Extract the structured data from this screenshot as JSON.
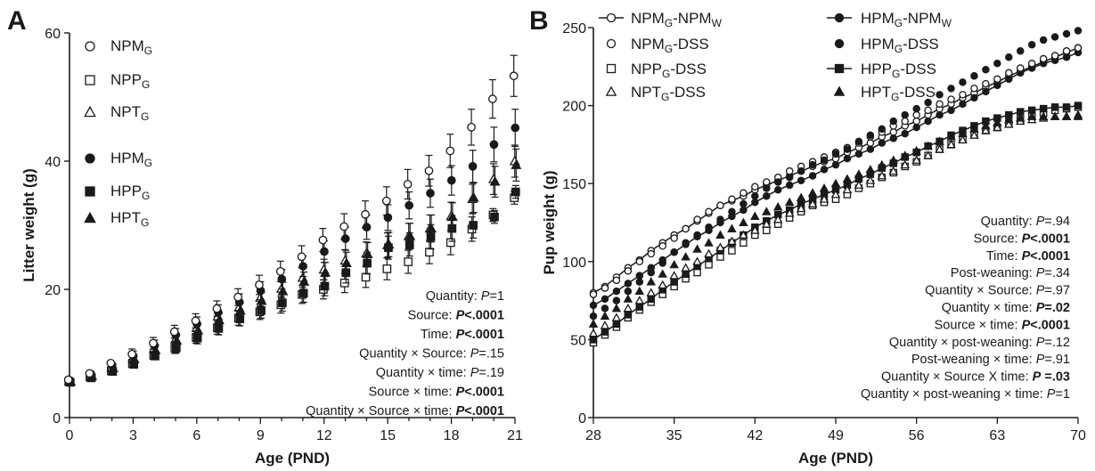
{
  "chart_data": [
    {
      "type": "scatter",
      "panel_label": "A",
      "xlabel": "Age (PND)",
      "ylabel": "Litter weight (g)",
      "xlim": [
        0,
        21
      ],
      "ylim": [
        0,
        60
      ],
      "x_ticks": [
        "0",
        "3",
        "6",
        "9",
        "12",
        "15",
        "18",
        "21"
      ],
      "y_ticks": [
        "0",
        "20",
        "40",
        "60"
      ],
      "x": [
        0,
        1,
        2,
        3,
        4,
        5,
        6,
        7,
        8,
        9,
        10,
        11,
        12,
        13,
        14,
        15,
        16,
        17,
        18,
        19,
        20,
        21
      ],
      "series": [
        {
          "name": "NPM",
          "sub": "G",
          "marker": "circle-open",
          "values": [
            5.9,
            6.9,
            8.5,
            9.9,
            11.6,
            13.4,
            15.1,
            17.0,
            18.8,
            20.7,
            22.8,
            25.1,
            27.7,
            29.8,
            31.7,
            33.8,
            36.4,
            38.5,
            41.6,
            45.3,
            49.7,
            53.3
          ],
          "errors": [
            0.6,
            0.6,
            0.7,
            0.8,
            0.9,
            1.0,
            1.1,
            1.2,
            1.3,
            1.5,
            1.6,
            1.7,
            1.8,
            2.0,
            2.1,
            2.2,
            2.3,
            2.4,
            2.6,
            2.8,
            3.0,
            3.2
          ]
        },
        {
          "name": "NPP",
          "sub": "G",
          "marker": "square-open",
          "values": [
            5.6,
            6.3,
            7.3,
            8.4,
            9.7,
            10.8,
            12.5,
            14.0,
            15.5,
            16.5,
            17.6,
            19.2,
            20.0,
            21.0,
            21.9,
            23.2,
            24.3,
            25.8,
            27.3,
            29.4,
            31.6,
            34.3
          ],
          "errors": [
            0.4,
            0.4,
            0.5,
            0.6,
            0.7,
            0.8,
            0.9,
            1.0,
            1.1,
            1.2,
            1.3,
            1.4,
            1.5,
            1.5,
            1.6,
            1.7,
            1.8,
            1.8,
            1.9,
            1.9,
            1.0,
            1.0
          ]
        },
        {
          "name": "NPT",
          "sub": "G",
          "marker": "triangle-open",
          "values": [
            5.7,
            6.6,
            7.8,
            9.2,
            10.8,
            12.2,
            14.0,
            15.8,
            17.2,
            18.7,
            20.1,
            21.8,
            23.1,
            24.5,
            25.6,
            26.9,
            28.3,
            29.5,
            31.4,
            34.1,
            37.2,
            40.0
          ],
          "errors": [
            0.5,
            0.5,
            0.6,
            0.7,
            0.8,
            0.9,
            1.0,
            1.1,
            1.2,
            1.3,
            1.4,
            1.5,
            1.6,
            1.7,
            1.8,
            1.9,
            2.0,
            2.1,
            2.2,
            2.3,
            2.4,
            2.5
          ]
        },
        {
          "name": "HPM",
          "sub": "G",
          "marker": "circle-filled",
          "values": [
            5.8,
            6.8,
            8.2,
            9.6,
            11.2,
            12.9,
            14.6,
            16.4,
            18.0,
            19.8,
            21.6,
            23.6,
            25.9,
            27.9,
            29.7,
            31.2,
            33.1,
            35.0,
            37.0,
            39.2,
            42.6,
            45.2
          ],
          "errors": [
            0.6,
            0.6,
            0.7,
            0.8,
            0.9,
            1.0,
            1.1,
            1.2,
            1.3,
            1.4,
            1.5,
            1.6,
            1.7,
            1.8,
            1.9,
            2.0,
            2.1,
            2.2,
            2.3,
            2.5,
            2.7,
            2.9
          ]
        },
        {
          "name": "HPP",
          "sub": "G",
          "marker": "square-filled",
          "values": [
            5.5,
            6.2,
            7.2,
            8.3,
            9.6,
            10.9,
            12.4,
            13.9,
            15.4,
            16.7,
            17.9,
            19.4,
            20.5,
            22.6,
            24.1,
            26.5,
            27.0,
            28.2,
            29.5,
            30.0,
            31.3,
            35.2
          ],
          "errors": [
            0.4,
            0.4,
            0.5,
            0.6,
            0.7,
            0.8,
            0.9,
            1.0,
            1.1,
            1.2,
            1.3,
            1.4,
            1.5,
            1.6,
            1.7,
            1.8,
            1.8,
            1.9,
            2.0,
            2.0,
            1.0,
            1.0
          ]
        },
        {
          "name": "HPT",
          "sub": "G",
          "marker": "triangle-filled",
          "values": [
            5.6,
            6.5,
            7.7,
            9.1,
            10.5,
            12.0,
            13.6,
            15.2,
            16.7,
            18.2,
            19.7,
            21.2,
            22.6,
            24.1,
            25.5,
            27.0,
            28.3,
            29.5,
            31.3,
            34.3,
            36.8,
            39.4
          ],
          "errors": [
            0.5,
            0.5,
            0.6,
            0.7,
            0.8,
            0.9,
            1.0,
            1.1,
            1.2,
            1.3,
            1.4,
            1.5,
            1.6,
            1.7,
            1.8,
            1.9,
            2.0,
            2.1,
            2.2,
            2.3,
            2.4,
            2.5
          ]
        }
      ],
      "stats": [
        {
          "label": "Quantity:",
          "p_prefix": "P",
          "p_value": "=1",
          "bold": false
        },
        {
          "label": "Source:",
          "p_prefix": "P",
          "p_value": "<.0001",
          "bold": true
        },
        {
          "label": "Time:",
          "p_prefix": "P",
          "p_value": "<.0001",
          "bold": true
        },
        {
          "label": "Quantity × Source:",
          "p_prefix": "P",
          "p_value": "=.15",
          "bold": false
        },
        {
          "label": "Quantity × time:",
          "p_prefix": "P",
          "p_value": "=.19",
          "bold": false
        },
        {
          "label": "Source × time:",
          "p_prefix": "P",
          "p_value": "<.0001",
          "bold": true
        },
        {
          "label": "Quantity × Source × time:",
          "p_prefix": "P",
          "p_value": "<.0001",
          "bold": true
        }
      ]
    },
    {
      "type": "line",
      "panel_label": "B",
      "xlabel": "Age (PND)",
      "ylabel": "Pup weight (g)",
      "xlim": [
        28,
        70
      ],
      "ylim": [
        0,
        250
      ],
      "x_ticks": [
        "28",
        "35",
        "42",
        "49",
        "56",
        "63",
        "70"
      ],
      "y_ticks": [
        "0",
        "50",
        "100",
        "150",
        "200",
        "250"
      ],
      "x": [
        28,
        29,
        30,
        31,
        32,
        33,
        34,
        35,
        36,
        37,
        38,
        39,
        40,
        41,
        42,
        43,
        44,
        45,
        46,
        47,
        48,
        49,
        50,
        51,
        52,
        53,
        54,
        55,
        56,
        57,
        58,
        59,
        60,
        61,
        62,
        63,
        64,
        65,
        66,
        67,
        68,
        69,
        70
      ],
      "series": [
        {
          "name": "NPM",
          "sub1": "G",
          "name2": "-NPM",
          "sub2": "W",
          "marker": "line-circle-open",
          "values": [
            80,
            84,
            90,
            96,
            101,
            107,
            112,
            117,
            121,
            126,
            131,
            136,
            139,
            142,
            146,
            149,
            152,
            155,
            158,
            161,
            164,
            166,
            170,
            173,
            176,
            180,
            183,
            187,
            190,
            194,
            198,
            201,
            205,
            208,
            212,
            215,
            219,
            222,
            225,
            228,
            231,
            234,
            237
          ]
        },
        {
          "name": "NPM",
          "sub": "G",
          "name2": "-DSS",
          "marker": "circle-open",
          "values": [
            79,
            83,
            88,
            94,
            100,
            105,
            110,
            115,
            121,
            127,
            132,
            136,
            140,
            144,
            148,
            151,
            154,
            158,
            161,
            164,
            167,
            170,
            173,
            176,
            180,
            183,
            187,
            190,
            194,
            197,
            201,
            204,
            207,
            211,
            214,
            217,
            221,
            224,
            227,
            230,
            232,
            235,
            237
          ]
        },
        {
          "name": "NPP",
          "sub": "G",
          "name2": "-DSS",
          "marker": "square-open",
          "values": [
            48,
            53,
            58,
            64,
            69,
            74,
            79,
            84,
            89,
            93,
            98,
            103,
            107,
            112,
            117,
            120,
            124,
            128,
            132,
            136,
            138,
            140,
            143,
            147,
            150,
            154,
            157,
            161,
            164,
            168,
            172,
            175,
            179,
            182,
            184,
            186,
            189,
            191,
            193,
            195,
            197,
            198,
            199
          ]
        },
        {
          "name": "NPT",
          "sub": "G",
          "name2": "-DSS",
          "marker": "triangle-open",
          "values": [
            54,
            59,
            64,
            70,
            75,
            80,
            85,
            91,
            96,
            100,
            105,
            109,
            113,
            117,
            120,
            124,
            127,
            131,
            134,
            137,
            140,
            143,
            146,
            149,
            152,
            155,
            158,
            162,
            165,
            168,
            172,
            175,
            178,
            181,
            184,
            186,
            188,
            190,
            191,
            192,
            193,
            193,
            194
          ]
        },
        {
          "name": "HPM",
          "sub1": "G",
          "name2": "-NPM",
          "sub2": "W",
          "marker": "line-circle-filled",
          "values": [
            72,
            76,
            81,
            86,
            91,
            96,
            101,
            106,
            111,
            116,
            120,
            125,
            129,
            133,
            138,
            142,
            146,
            149,
            152,
            155,
            159,
            162,
            166,
            169,
            172,
            176,
            179,
            182,
            186,
            190,
            194,
            197,
            201,
            205,
            209,
            213,
            217,
            221,
            224,
            227,
            229,
            231,
            234
          ]
        },
        {
          "name": "HPM",
          "sub": "G",
          "name2": "-DSS",
          "marker": "circle-filled",
          "values": [
            65,
            70,
            75,
            81,
            87,
            93,
            99,
            106,
            112,
            117,
            122,
            127,
            132,
            137,
            142,
            147,
            151,
            154,
            158,
            162,
            165,
            169,
            172,
            177,
            181,
            185,
            190,
            194,
            198,
            202,
            207,
            211,
            215,
            219,
            223,
            227,
            231,
            235,
            239,
            242,
            244,
            246,
            248
          ]
        },
        {
          "name": "HPP",
          "sub": "G",
          "name2": "-DSS",
          "marker": "line-square-filled",
          "values": [
            50,
            55,
            60,
            66,
            71,
            76,
            82,
            87,
            92,
            97,
            102,
            107,
            112,
            117,
            122,
            126,
            130,
            133,
            137,
            140,
            143,
            146,
            149,
            153,
            156,
            160,
            163,
            167,
            170,
            174,
            177,
            181,
            184,
            187,
            190,
            192,
            194,
            196,
            197,
            198,
            199,
            199,
            200
          ]
        },
        {
          "name": "HPT",
          "sub": "G",
          "name2": "-DSS",
          "marker": "triangle-filled",
          "values": [
            60,
            65,
            70,
            76,
            81,
            87,
            92,
            98,
            103,
            108,
            112,
            117,
            121,
            125,
            129,
            132,
            135,
            138,
            141,
            144,
            147,
            150,
            153,
            156,
            159,
            162,
            165,
            168,
            171,
            174,
            177,
            180,
            182,
            185,
            187,
            189,
            191,
            192,
            193,
            193,
            193,
            193,
            193
          ]
        }
      ],
      "stats": [
        {
          "label": "Quantity:",
          "p_prefix": "P",
          "p_value": "=.94",
          "bold": false
        },
        {
          "label": "Source:",
          "p_prefix": "P",
          "p_value": "<.0001",
          "bold": true
        },
        {
          "label": "Time:",
          "p_prefix": "P",
          "p_value": "<.0001",
          "bold": true
        },
        {
          "label": "Post-weaning:",
          "p_prefix": "P",
          "p_value": "=.34",
          "bold": false
        },
        {
          "label": "Quantity × Source:",
          "p_prefix": "P",
          "p_value": "=.97",
          "bold": false
        },
        {
          "label": "Quantity × time:",
          "p_prefix": "P",
          "p_value": "=.02",
          "bold": true
        },
        {
          "label": "Source × time:",
          "p_prefix": "P",
          "p_value": "<.0001",
          "bold": true
        },
        {
          "label": "Quantity × post-weaning:",
          "p_prefix": "P",
          "p_value": "=.12",
          "bold": false
        },
        {
          "label": "Post-weaning × time:",
          "p_prefix": "P",
          "p_value": "=.91",
          "bold": false
        },
        {
          "label": "Quantity × Source X time:",
          "p_prefix": "P",
          "p_value": " =.03",
          "bold": true
        },
        {
          "label": "Quantity × post-weaning × time:",
          "p_prefix": "P",
          "p_value": "=1",
          "bold": false
        }
      ]
    }
  ],
  "colors": {
    "ink": "#1a1a1a",
    "background": "#ffffff"
  }
}
